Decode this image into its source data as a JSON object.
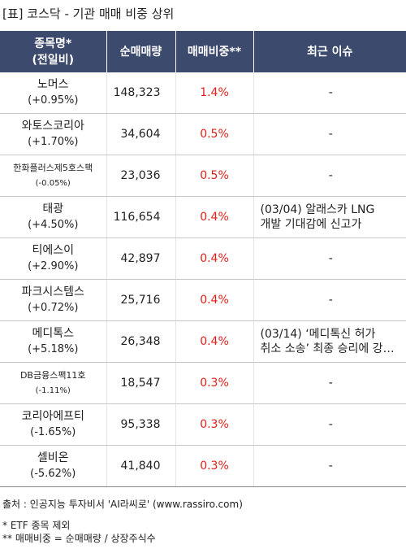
{
  "title": "[표] 코스닥 - 기관 매매 비중 상위",
  "headers": {
    "name_line1": "종목명*",
    "name_line2": "(전일비)",
    "volume": "순매매량",
    "ratio": "매매비중**",
    "issue": "최근 이슈"
  },
  "rows": [
    {
      "name": "노머스",
      "change": "(+0.95%)",
      "volume": "148,323",
      "ratio": "1.4%",
      "issue_line1": "-",
      "issue_line2": ""
    },
    {
      "name": "와토스코리아",
      "change": "(+1.70%)",
      "volume": "34,604",
      "ratio": "0.5%",
      "issue_line1": "-",
      "issue_line2": ""
    },
    {
      "name": "한화플러스제5호스팩",
      "change": "(-0.05%)",
      "volume": "23,036",
      "ratio": "0.5%",
      "issue_line1": "-",
      "issue_line2": ""
    },
    {
      "name": "태광",
      "change": "(+4.50%)",
      "volume": "116,654",
      "ratio": "0.4%",
      "issue_line1": "(03/04) 알래스카 LNG",
      "issue_line2": "개발 기대감에 신고가"
    },
    {
      "name": "티에스이",
      "change": "(+2.90%)",
      "volume": "42,897",
      "ratio": "0.4%",
      "issue_line1": "-",
      "issue_line2": ""
    },
    {
      "name": "파크시스템스",
      "change": "(+0.72%)",
      "volume": "25,716",
      "ratio": "0.4%",
      "issue_line1": "-",
      "issue_line2": ""
    },
    {
      "name": "메디톡스",
      "change": "(+5.18%)",
      "volume": "26,348",
      "ratio": "0.4%",
      "issue_line1": "(03/14) ‘메디톡신 허가",
      "issue_line2": "취소 소송’ 최종 승리에 강세..."
    },
    {
      "name": "DB금융스팩11호",
      "change": "(-1.11%)",
      "volume": "18,547",
      "ratio": "0.3%",
      "issue_line1": "-",
      "issue_line2": ""
    },
    {
      "name": "코리아에프티",
      "change": "(-1.65%)",
      "volume": "95,338",
      "ratio": "0.3%",
      "issue_line1": "-",
      "issue_line2": ""
    },
    {
      "name": "셀비온",
      "change": "(-5.62%)",
      "volume": "41,840",
      "ratio": "0.3%",
      "issue_line1": "-",
      "issue_line2": ""
    }
  ],
  "footer": {
    "source": "출처 : 인공지능 투자비서 'AI라씨로' (www.rassiro.com)",
    "note1": "* ETF 종목 제외",
    "note2": "** 매매비중 = 순매매량 / 상장주식수"
  },
  "colors": {
    "header_bg": "#3c4a6e",
    "header_text": "#ffffff",
    "ratio_text": "#e0201a"
  }
}
